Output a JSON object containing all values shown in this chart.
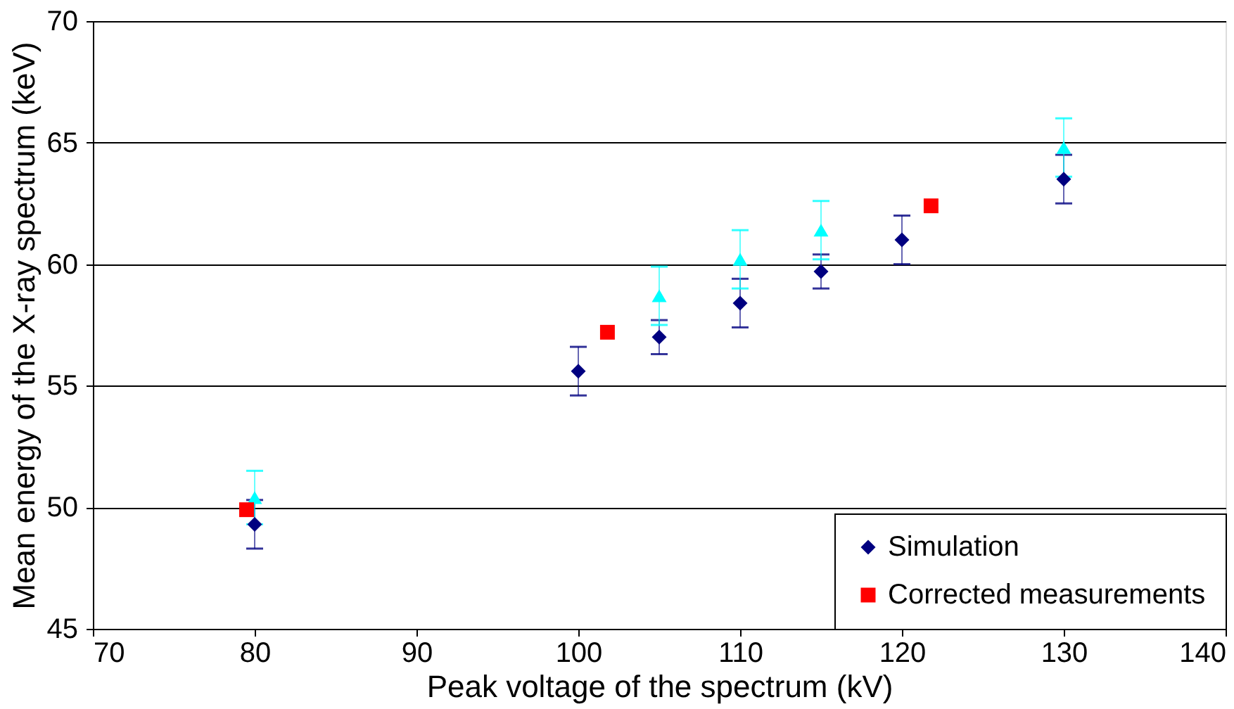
{
  "chart_data": {
    "type": "scatter",
    "xlabel": "Peak voltage of the spectrum (kV)",
    "ylabel": "Mean energy of the X-ray spectrum (keV)",
    "xlim": [
      70,
      140
    ],
    "xticks": [
      70,
      80,
      90,
      100,
      110,
      120,
      130,
      140
    ],
    "ylim": [
      45,
      70
    ],
    "yticks": [
      45,
      50,
      55,
      60,
      65,
      70
    ],
    "grid": "y",
    "legend": "bottom right",
    "series": [
      {
        "name": "Simulation",
        "color": "#000080",
        "marker": "diamond",
        "x": [
          80,
          100,
          105,
          110,
          115,
          120,
          130
        ],
        "values": [
          49.3,
          55.6,
          57.0,
          58.4,
          59.7,
          61.0,
          63.5
        ],
        "errors": [
          1.0,
          1.0,
          0.7,
          1.0,
          0.7,
          1.0,
          1.0
        ]
      },
      {
        "color": "#00ffff",
        "marker": "triangle",
        "x": [
          80,
          105,
          110,
          115,
          130
        ],
        "values": [
          50.4,
          58.7,
          60.2,
          61.4,
          64.8
        ],
        "errors": [
          1.1,
          1.2,
          1.2,
          1.2,
          1.2
        ]
      },
      {
        "name": "Corrected measurements",
        "color": "#ff0000",
        "marker": "square",
        "x": [
          79.5,
          101.8,
          121.8
        ],
        "values": [
          49.9,
          57.2,
          62.4
        ]
      }
    ]
  }
}
